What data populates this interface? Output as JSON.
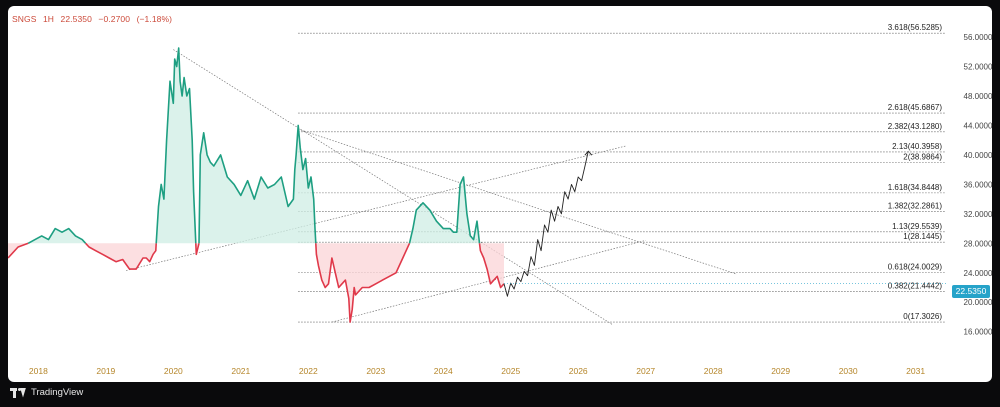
{
  "header": {
    "symbol": "SNGS",
    "interval": "1H",
    "price": "22.5350",
    "change": "−0.2700",
    "change_pct": "(−1.18%)"
  },
  "last_price_label": "22.5350",
  "branding": "TradingView",
  "colors": {
    "up": "#1e9f82",
    "down": "#e0394a",
    "up_fill": "#cfeee4",
    "down_fill": "#fbd4d7",
    "projection": "#222222",
    "fib_line": "#555555",
    "trend_line": "#777777",
    "axis_text": "#b5862a",
    "price_axis_text": "#444444",
    "last_price_bg": "#26a3c9"
  },
  "chart_data": {
    "type": "line",
    "title": "",
    "xlabel": "",
    "ylabel": "",
    "x_ticks": [
      "2018",
      "2019",
      "2020",
      "2021",
      "2022",
      "2023",
      "2024",
      "2025",
      "2026",
      "2027",
      "2028",
      "2029",
      "2030",
      "2031"
    ],
    "y_ticks": [
      "56.0000",
      "52.0000",
      "48.0000",
      "44.0000",
      "40.0000",
      "36.0000",
      "32.0000",
      "28.0000",
      "24.0000",
      "20.0000",
      "16.0000"
    ],
    "xlim": [
      2017.55,
      2031.45
    ],
    "ylim": [
      14.6,
      59.4
    ],
    "baseline": 28.0,
    "series": [
      {
        "x": [
          2017.55,
          2017.7,
          2017.85,
          2017.95,
          2018.05,
          2018.15,
          2018.25,
          2018.35,
          2018.45,
          2018.55,
          2018.65,
          2018.75,
          2018.85,
          2018.95,
          2019.05,
          2019.15,
          2019.25,
          2019.35,
          2019.45,
          2019.55,
          2019.6,
          2019.65,
          2019.7,
          2019.74,
          2019.78,
          2019.82,
          2019.86,
          2019.9,
          2019.95,
          2020.0,
          2020.02,
          2020.05,
          2020.08,
          2020.1,
          2020.13,
          2020.16,
          2020.2,
          2020.24,
          2020.28,
          2020.3,
          2020.34,
          2020.38,
          2020.4,
          2020.45,
          2020.5,
          2020.55,
          2020.6,
          2020.7,
          2020.8,
          2020.9,
          2021.0,
          2021.1,
          2021.2,
          2021.3,
          2021.4,
          2021.5,
          2021.6,
          2021.7,
          2021.78,
          2021.8,
          2021.82,
          2021.85,
          2021.88,
          2021.92,
          2021.96,
          2022.0,
          2022.04,
          2022.08,
          2022.1,
          2022.12,
          2022.15,
          2022.2,
          2022.25,
          2022.3,
          2022.35,
          2022.4,
          2022.45,
          2022.5,
          2022.55,
          2022.6,
          2022.62,
          2022.65,
          2022.68,
          2022.7,
          2022.8,
          2022.9,
          2023.0,
          2023.1,
          2023.2,
          2023.3,
          2023.4,
          2023.5,
          2023.55,
          2023.6,
          2023.7,
          2023.8,
          2023.9,
          2024.0,
          2024.05,
          2024.1,
          2024.15,
          2024.2,
          2024.25,
          2024.3,
          2024.35,
          2024.4,
          2024.45,
          2024.5,
          2024.55,
          2024.6,
          2024.65,
          2024.7,
          2024.8,
          2024.85,
          2024.9
        ],
        "y": [
          26.0,
          27.5,
          28.0,
          28.5,
          29.0,
          28.5,
          30.0,
          29.5,
          30.0,
          29.0,
          28.5,
          27.5,
          27.0,
          26.5,
          26.0,
          25.5,
          25.8,
          24.5,
          24.5,
          26.0,
          26.0,
          25.5,
          26.5,
          27.0,
          33.0,
          36.0,
          34.0,
          42.0,
          50.0,
          47.0,
          53.0,
          52.0,
          54.5,
          50.0,
          48.0,
          50.5,
          48.0,
          49.0,
          42.0,
          35.0,
          26.5,
          28.0,
          40.0,
          43.0,
          40.0,
          39.0,
          38.5,
          40.0,
          37.0,
          36.0,
          34.5,
          36.5,
          34.0,
          37.0,
          35.5,
          36.0,
          37.0,
          33.0,
          34.0,
          38.0,
          40.0,
          44.0,
          41.0,
          38.0,
          39.5,
          35.5,
          37.0,
          34.0,
          30.0,
          26.5,
          25.0,
          23.0,
          22.0,
          22.5,
          26.0,
          24.0,
          22.0,
          22.5,
          23.0,
          20.5,
          17.3,
          19.0,
          22.0,
          21.0,
          22.0,
          22.0,
          22.5,
          23.0,
          23.5,
          24.0,
          26.0,
          28.0,
          30.0,
          32.5,
          33.5,
          32.5,
          31.0,
          30.0,
          30.0,
          30.0,
          29.5,
          29.5,
          36.0,
          37.0,
          32.0,
          29.0,
          28.5,
          31.0,
          27.0,
          26.0,
          24.5,
          22.5,
          23.5,
          22.0,
          22.5
        ]
      },
      {
        "name": "",
        "x": [
          2024.9,
          2024.95,
          2025.0,
          2025.05,
          2025.1,
          2025.15,
          2025.2,
          2025.25,
          2025.3,
          2025.35,
          2025.4,
          2025.45,
          2025.5,
          2025.55,
          2025.6,
          2025.65,
          2025.7,
          2025.75,
          2025.8,
          2025.85,
          2025.9,
          2025.95,
          2026.0,
          2026.05,
          2026.1,
          2026.15
        ],
        "y": [
          22.5,
          20.8,
          22.6,
          21.8,
          23.4,
          22.8,
          24.2,
          23.6,
          26.2,
          25.0,
          28.5,
          27.0,
          30.5,
          29.5,
          32.5,
          31.0,
          33.0,
          32.0,
          35.0,
          34.0,
          36.0,
          35.0,
          37.0,
          36.5,
          38.5,
          40.5
        ]
      }
    ],
    "fib_levels": [
      {
        "label": "0(17.3026)",
        "value": 17.3026
      },
      {
        "label": "0.382(21.4442)",
        "value": 21.4442
      },
      {
        "label": "0.618(24.0029)",
        "value": 24.0029
      },
      {
        "label": "1(28.1445)",
        "value": 28.1445
      },
      {
        "label": "1.13(29.5539)",
        "value": 29.5539
      },
      {
        "label": "1.382(32.2861)",
        "value": 32.2861
      },
      {
        "label": "1.618(34.8448)",
        "value": 34.8448
      },
      {
        "label": "2(38.9864)",
        "value": 38.9864
      },
      {
        "label": "2.13(40.3958)",
        "value": 40.3958
      },
      {
        "label": "2.382(43.1280)",
        "value": 43.128
      },
      {
        "label": "2.618(45.6867)",
        "value": 45.6867
      },
      {
        "label": "3.618(56.5285)",
        "value": 56.5285
      }
    ],
    "fib_start_x": 2021.85,
    "trend_lines": [
      {
        "x1": 2020.0,
        "y1": 54.3,
        "x2": 2026.5,
        "y2": 17.0
      },
      {
        "x1": 2021.85,
        "y1": 43.5,
        "x2": 2028.35,
        "y2": 23.8
      },
      {
        "x1": 2019.3,
        "y1": 24.3,
        "x2": 2026.7,
        "y2": 41.2
      },
      {
        "x1": 2022.35,
        "y1": 17.3,
        "x2": 2027.0,
        "y2": 28.4
      }
    ],
    "last_price": 22.535,
    "grid": false,
    "legend": "none"
  }
}
